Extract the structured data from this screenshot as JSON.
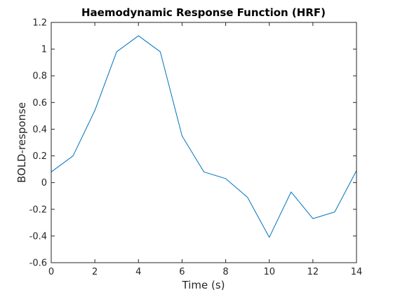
{
  "chart_data": {
    "type": "line",
    "title": "Haemodynamic Response Function (HRF)",
    "xlabel": "Time (s)",
    "ylabel": "BOLD-response",
    "xlim": [
      0,
      14
    ],
    "ylim": [
      -0.6,
      1.2
    ],
    "xticks": [
      0,
      2,
      4,
      6,
      8,
      10,
      12,
      14
    ],
    "xtick_labels": [
      "0",
      "2",
      "4",
      "6",
      "8",
      "10",
      "12",
      "14"
    ],
    "yticks": [
      -0.6,
      -0.4,
      -0.2,
      0,
      0.2,
      0.4,
      0.6,
      0.8,
      1,
      1.2
    ],
    "ytick_labels": [
      "-0.6",
      "-0.4",
      "-0.2",
      "0",
      "0.2",
      "0.4",
      "0.6",
      "0.8",
      "1",
      "1.2"
    ],
    "grid": false,
    "line_color": "#0072bd",
    "axis_color": "#262626",
    "series": [
      {
        "x": [
          0,
          1,
          2,
          3,
          4,
          5,
          6,
          7,
          8,
          9,
          10,
          11,
          12,
          13,
          14
        ],
        "values": [
          0.08,
          0.2,
          0.54,
          0.98,
          1.1,
          0.98,
          0.35,
          0.08,
          0.03,
          -0.11,
          -0.41,
          -0.07,
          -0.27,
          -0.22,
          0.09
        ]
      }
    ]
  }
}
